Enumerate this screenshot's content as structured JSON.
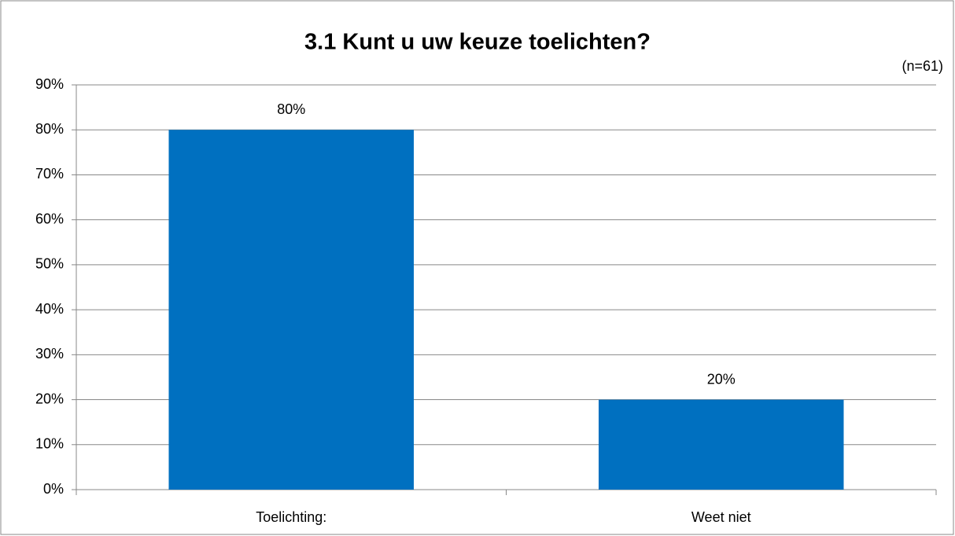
{
  "chart_data": {
    "type": "bar",
    "title": "3.1 Kunt u uw keuze toelichten?",
    "annotation": "(n=61)",
    "categories": [
      "Toelichting:",
      "Weet niet"
    ],
    "values": [
      80,
      20
    ],
    "value_labels": [
      "80%",
      "20%"
    ],
    "color": "#0070c0",
    "ylim": [
      0,
      90
    ],
    "yticks": [
      {
        "value": 0,
        "label": "0%"
      },
      {
        "value": 10,
        "label": "10%"
      },
      {
        "value": 20,
        "label": "20%"
      },
      {
        "value": 30,
        "label": "30%"
      },
      {
        "value": 40,
        "label": "40%"
      },
      {
        "value": 50,
        "label": "50%"
      },
      {
        "value": 60,
        "label": "60%"
      },
      {
        "value": 70,
        "label": "70%"
      },
      {
        "value": 80,
        "label": "80%"
      },
      {
        "value": 90,
        "label": "90%"
      }
    ],
    "grid": true
  }
}
